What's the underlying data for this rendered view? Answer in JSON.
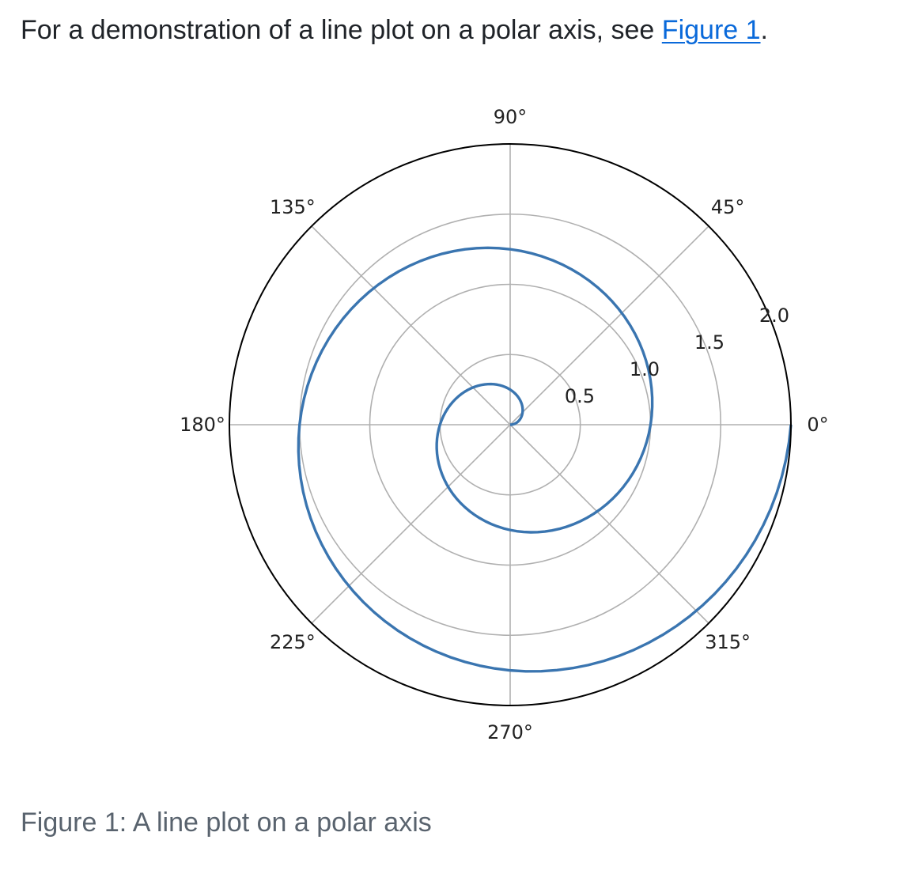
{
  "intro": {
    "before": "For a demonstration of a line plot on a polar axis, see ",
    "link_text": "Figure 1",
    "after": "."
  },
  "caption": "Figure 1: A line plot on a polar axis",
  "colors": {
    "line": "#3a75b0",
    "grid": "#b0b0b0",
    "frame": "#000000",
    "text": "#1f2328",
    "link": "#0969da",
    "caption": "#59636e"
  },
  "chart_data": {
    "type": "line",
    "projection": "polar",
    "title": "",
    "r_range": [
      0,
      2
    ],
    "r_ticks": [
      0.5,
      1.0,
      1.5,
      2.0
    ],
    "r_tick_labels": [
      "0.5",
      "1.0",
      "1.5",
      "2.0"
    ],
    "r_label_angle_deg": 22.5,
    "theta_ticks_deg": [
      0,
      45,
      90,
      135,
      180,
      225,
      270,
      315
    ],
    "theta_tick_labels": [
      "0°",
      "45°",
      "90°",
      "135°",
      "180°",
      "225°",
      "270°",
      "315°"
    ],
    "grid": true,
    "series": [
      {
        "r_start": 0.0,
        "r_end": 2.0,
        "r_step": 0.01,
        "theta_formula": "theta = 2 * pi * r",
        "description_of_relation": "r from 0 to 2; theta = 2πr"
      }
    ]
  }
}
